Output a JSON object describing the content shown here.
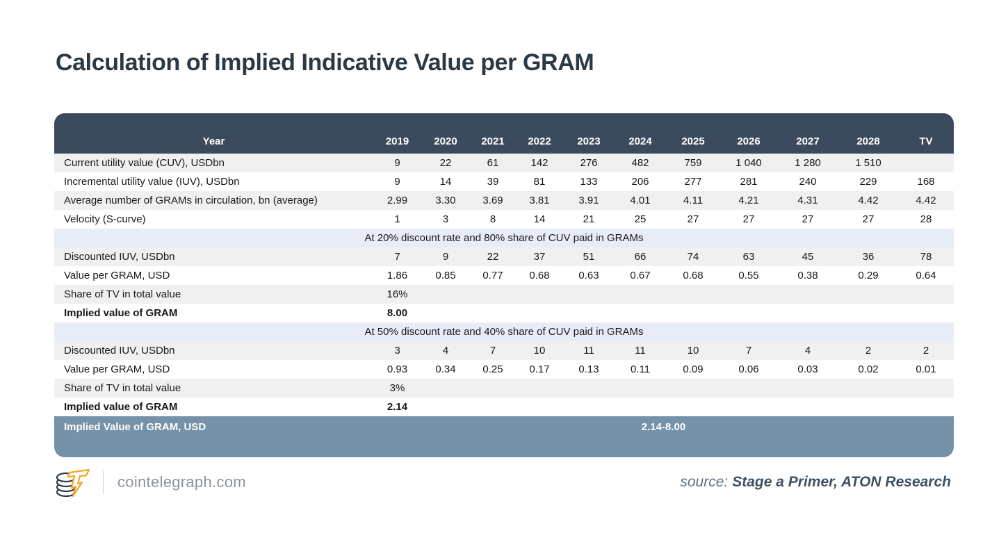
{
  "title": "Calculation of Implied Indicative Value per GRAM",
  "chart_data": {
    "type": "table",
    "title": "Calculation of Implied Indicative Value per GRAM",
    "corner_label": "Year",
    "columns": [
      "2019",
      "2020",
      "2021",
      "2022",
      "2023",
      "2024",
      "2025",
      "2026",
      "2027",
      "2028",
      "TV"
    ],
    "rows": [
      {
        "type": "data",
        "label": "Current utility value (CUV), USDbn",
        "values": [
          "9",
          "22",
          "61",
          "142",
          "276",
          "482",
          "759",
          "1 040",
          "1 280",
          "1 510",
          ""
        ]
      },
      {
        "type": "data",
        "label": "Incremental utility value (IUV), USDbn",
        "values": [
          "9",
          "14",
          "39",
          "81",
          "133",
          "206",
          "277",
          "281",
          "240",
          "229",
          "168"
        ]
      },
      {
        "type": "data",
        "label": "Average number of GRAMs in circulation, bn (average)",
        "values": [
          "2.99",
          "3.30",
          "3.69",
          "3.81",
          "3.91",
          "4.01",
          "4.11",
          "4.21",
          "4.31",
          "4.42",
          "4.42"
        ]
      },
      {
        "type": "data",
        "label": "Velocity (S-curve)",
        "values": [
          "1",
          "3",
          "8",
          "14",
          "21",
          "25",
          "27",
          "27",
          "27",
          "27",
          "28"
        ]
      },
      {
        "type": "section",
        "label": "At 20% discount rate and 80% share of CUV paid in GRAMs"
      },
      {
        "type": "data",
        "label": "Discounted IUV, USDbn",
        "values": [
          "7",
          "9",
          "22",
          "37",
          "51",
          "66",
          "74",
          "63",
          "45",
          "36",
          "78"
        ]
      },
      {
        "type": "data",
        "label": "Value per GRAM, USD",
        "values": [
          "1.86",
          "0.85",
          "0.77",
          "0.68",
          "0.63",
          "0.67",
          "0.68",
          "0.55",
          "0.38",
          "0.29",
          "0.64"
        ]
      },
      {
        "type": "data",
        "label": "Share of TV in total value",
        "values": [
          "16%",
          "",
          "",
          "",
          "",
          "",
          "",
          "",
          "",
          "",
          ""
        ]
      },
      {
        "type": "data",
        "bold": true,
        "label": "Implied value of GRAM",
        "values": [
          "8.00",
          "",
          "",
          "",
          "",
          "",
          "",
          "",
          "",
          "",
          ""
        ]
      },
      {
        "type": "section",
        "label": "At 50% discount rate and 40% share of CUV paid in GRAMs"
      },
      {
        "type": "data",
        "label": "Discounted IUV, USDbn",
        "values": [
          "3",
          "4",
          "7",
          "10",
          "11",
          "11",
          "10",
          "7",
          "4",
          "2",
          "2"
        ]
      },
      {
        "type": "data",
        "label": "Value per GRAM, USD",
        "values": [
          "0.93",
          "0.34",
          "0.25",
          "0.17",
          "0.13",
          "0.11",
          "0.09",
          "0.06",
          "0.03",
          "0.02",
          "0.01"
        ]
      },
      {
        "type": "data",
        "label": "Share of TV in total value",
        "values": [
          "3%",
          "",
          "",
          "",
          "",
          "",
          "",
          "",
          "",
          "",
          ""
        ]
      },
      {
        "type": "data",
        "bold": true,
        "label": "Implied value of GRAM",
        "values": [
          "2.14",
          "",
          "",
          "",
          "",
          "",
          "",
          "",
          "",
          "",
          ""
        ]
      }
    ],
    "summary": {
      "label": "Implied Value of GRAM, USD",
      "value": "2.14-8.00"
    }
  },
  "footer": {
    "logo": "cointelegraph-coin-bolt-logo",
    "brand": "cointelegraph.com",
    "source_prefix": "source:",
    "source_name": "Stage a Primer, ATON Research"
  },
  "colors": {
    "header_bg": "#3c4a5e",
    "summary_bg": "#7592a8",
    "section_band_bg": "#e8ecf6",
    "stripe_bg": "#f0f0f1",
    "title_text": "#2b3947",
    "brand_text": "#8d939a",
    "source_text": "#3d5163",
    "logo_accent": "#f5a623"
  }
}
